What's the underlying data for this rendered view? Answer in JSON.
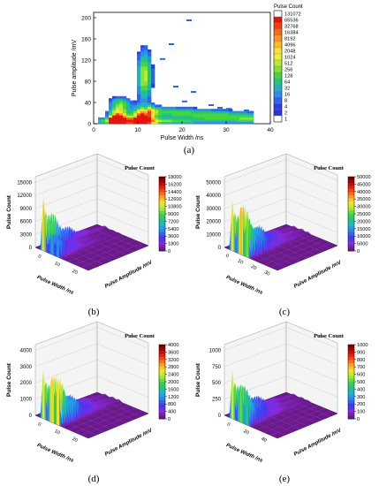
{
  "figure": {
    "captions": [
      "(a)",
      "(b)",
      "(c)",
      "(d)",
      "(e)"
    ]
  },
  "chart_data": [
    {
      "id": "a",
      "type": "heatmap",
      "title": "",
      "xlabel": "Pulse Width /ns",
      "ylabel": "Pulse amplitude /mV",
      "xlim": [
        0,
        40
      ],
      "ylim": [
        0,
        210
      ],
      "xticks": [
        "0",
        "10",
        "20",
        "30",
        "40"
      ],
      "yticks": [
        "0",
        "40",
        "80",
        "120",
        "160",
        "200"
      ],
      "colorbar": {
        "title": "Pulse Count",
        "levels": [
          "131072",
          "65536",
          "32768",
          "16384",
          "8192",
          "4096",
          "2048",
          "1024",
          "512",
          "256",
          "128",
          "64",
          "32",
          "16",
          "8",
          "4",
          "2",
          "1"
        ],
        "colors": [
          "#ffffff",
          "#e8120c",
          "#f43b10",
          "#f86818",
          "#fb9220",
          "#fdbb28",
          "#fee030",
          "#e9f233",
          "#b8ec33",
          "#82e337",
          "#45d63f",
          "#25c47c",
          "#1cb4bd",
          "#2a8ee8",
          "#2f62f0",
          "#2a3cf0",
          "#3030d8",
          "#ffffff"
        ]
      },
      "features": [
        {
          "x": 5.5,
          "y": 12,
          "level": "32768"
        },
        {
          "x": 11,
          "y": 12,
          "level": "65536"
        },
        {
          "x": 11.5,
          "y": 110,
          "level": "64"
        },
        {
          "x": 21,
          "y": 195,
          "level": "1"
        }
      ]
    },
    {
      "id": "b",
      "type": "surface3d",
      "title": "Pulse Count",
      "xlabel": "Pulse Width /ns",
      "ylabel": "Pulse Amplitude /mV",
      "zlabel": "Pulse Count",
      "zticks": [
        "0",
        "3000",
        "6000",
        "9000",
        "12000",
        "15000"
      ],
      "xticks": [
        "0",
        "10",
        "20"
      ],
      "colorbar_levels": [
        "18000",
        "16200",
        "14400",
        "12600",
        "10800",
        "9000",
        "7200",
        "5400",
        "3600",
        "1800",
        "0"
      ],
      "peaks": [
        17000,
        7000,
        6000
      ]
    },
    {
      "id": "c",
      "type": "surface3d",
      "title": "Pulse Count",
      "xlabel": "Pulse Width /ns",
      "ylabel": "Pulse Amplitude /mV",
      "zlabel": "Pulse Count",
      "zticks": [
        "0",
        "10000",
        "20000",
        "30000",
        "40000",
        "50000"
      ],
      "xticks": [
        "0",
        "10",
        "20",
        "30"
      ],
      "colorbar_levels": [
        "50000",
        "45000",
        "40000",
        "35000",
        "30000",
        "25000",
        "20000",
        "15000",
        "10000",
        "5000",
        "0"
      ],
      "peaks": [
        45000,
        48000,
        33000
      ]
    },
    {
      "id": "d",
      "type": "surface3d",
      "title": "Pulse Count",
      "xlabel": "Pulse Width /ns",
      "ylabel": "Pulse Amplitude /mV",
      "zlabel": "Pulse Count",
      "zticks": [
        "0",
        "1000",
        "2000",
        "3000",
        "4000"
      ],
      "xticks": [
        "0",
        "10",
        "20"
      ],
      "colorbar_levels": [
        "4000",
        "3600",
        "3200",
        "2800",
        "2400",
        "2000",
        "1600",
        "1200",
        "800",
        "400",
        "0"
      ],
      "peaks": [
        3500,
        3600,
        3300
      ]
    },
    {
      "id": "e",
      "type": "surface3d",
      "title": "Pulse Count",
      "xlabel": "Pulse Width /ns",
      "ylabel": "Pulse Amplitude /mV",
      "zlabel": "Pulse Count",
      "zticks": [
        "0",
        "250",
        "500",
        "750",
        "1000"
      ],
      "xticks": [
        "0",
        "20",
        "40"
      ],
      "colorbar_levels": [
        "1000",
        "900",
        "800",
        "700",
        "600",
        "500",
        "400",
        "300",
        "200",
        "100",
        "0"
      ],
      "peaks": [
        850,
        700,
        500
      ]
    }
  ]
}
